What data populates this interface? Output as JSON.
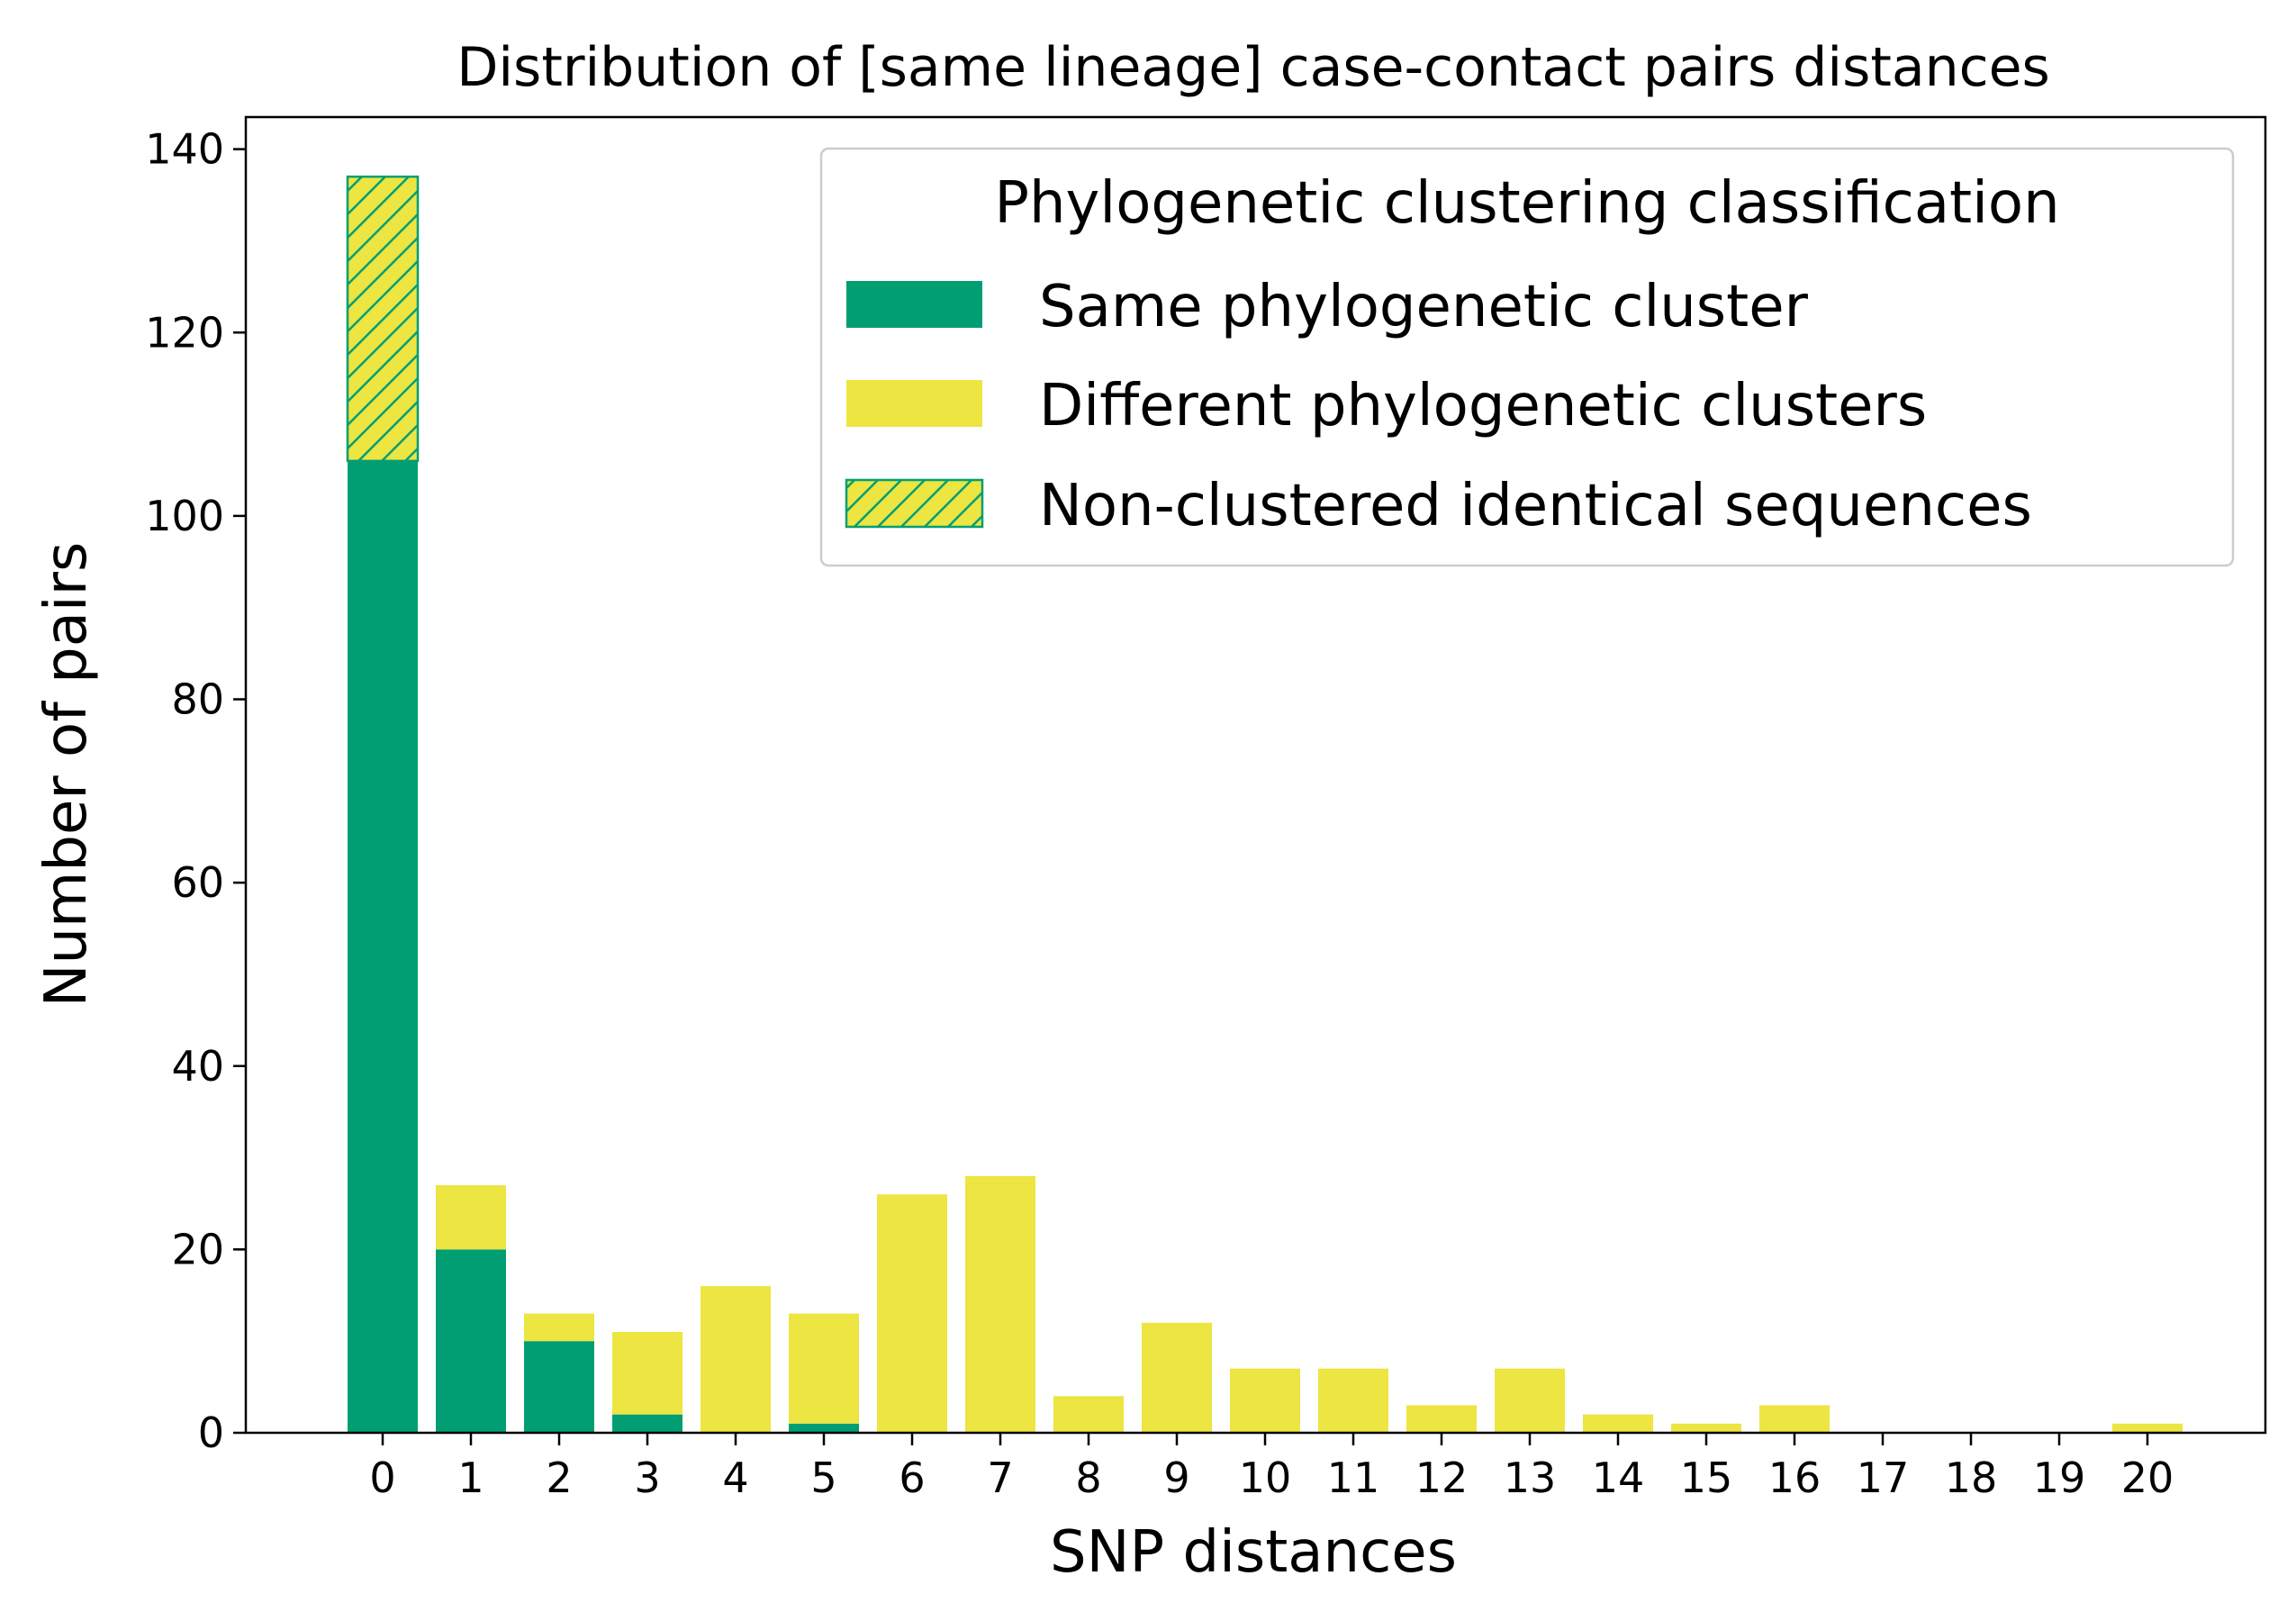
{
  "chart_data": {
    "type": "bar",
    "stacked": true,
    "title": "Distribution of [same lineage] case-contact pairs distances",
    "xlabel": "SNP distances",
    "ylabel": "Number of pairs",
    "categories": [
      "0",
      "1",
      "2",
      "3",
      "4",
      "5",
      "6",
      "7",
      "8",
      "9",
      "10",
      "11",
      "12",
      "13",
      "14",
      "15",
      "16",
      "17",
      "18",
      "19",
      "20"
    ],
    "ylim": [
      0,
      143.5
    ],
    "yticks": [
      0,
      20,
      40,
      60,
      80,
      100,
      120,
      140
    ],
    "grid": false,
    "legend": {
      "title": "Phylogenetic clustering classification",
      "placement": "top-right"
    },
    "series": [
      {
        "name": "Same phylogenetic cluster",
        "color": "#029e73",
        "values": [
          106,
          20,
          10,
          2,
          0,
          1,
          0,
          0,
          0,
          0,
          0,
          0,
          0,
          0,
          0,
          0,
          0,
          0,
          0,
          0,
          0
        ]
      },
      {
        "name": "Different phylogenetic clusters",
        "color": "#ece542",
        "values": [
          0,
          7,
          3,
          9,
          16,
          12,
          26,
          28,
          4,
          12,
          7,
          7,
          3,
          7,
          2,
          1,
          3,
          0,
          0,
          0,
          1
        ]
      },
      {
        "name": "Non-clustered identical sequences",
        "color": "#ece542",
        "hatch": true,
        "edgecolor": "#029e73",
        "values": [
          31,
          0,
          0,
          0,
          0,
          0,
          0,
          0,
          0,
          0,
          0,
          0,
          0,
          0,
          0,
          0,
          0,
          0,
          0,
          0,
          0
        ]
      }
    ]
  }
}
